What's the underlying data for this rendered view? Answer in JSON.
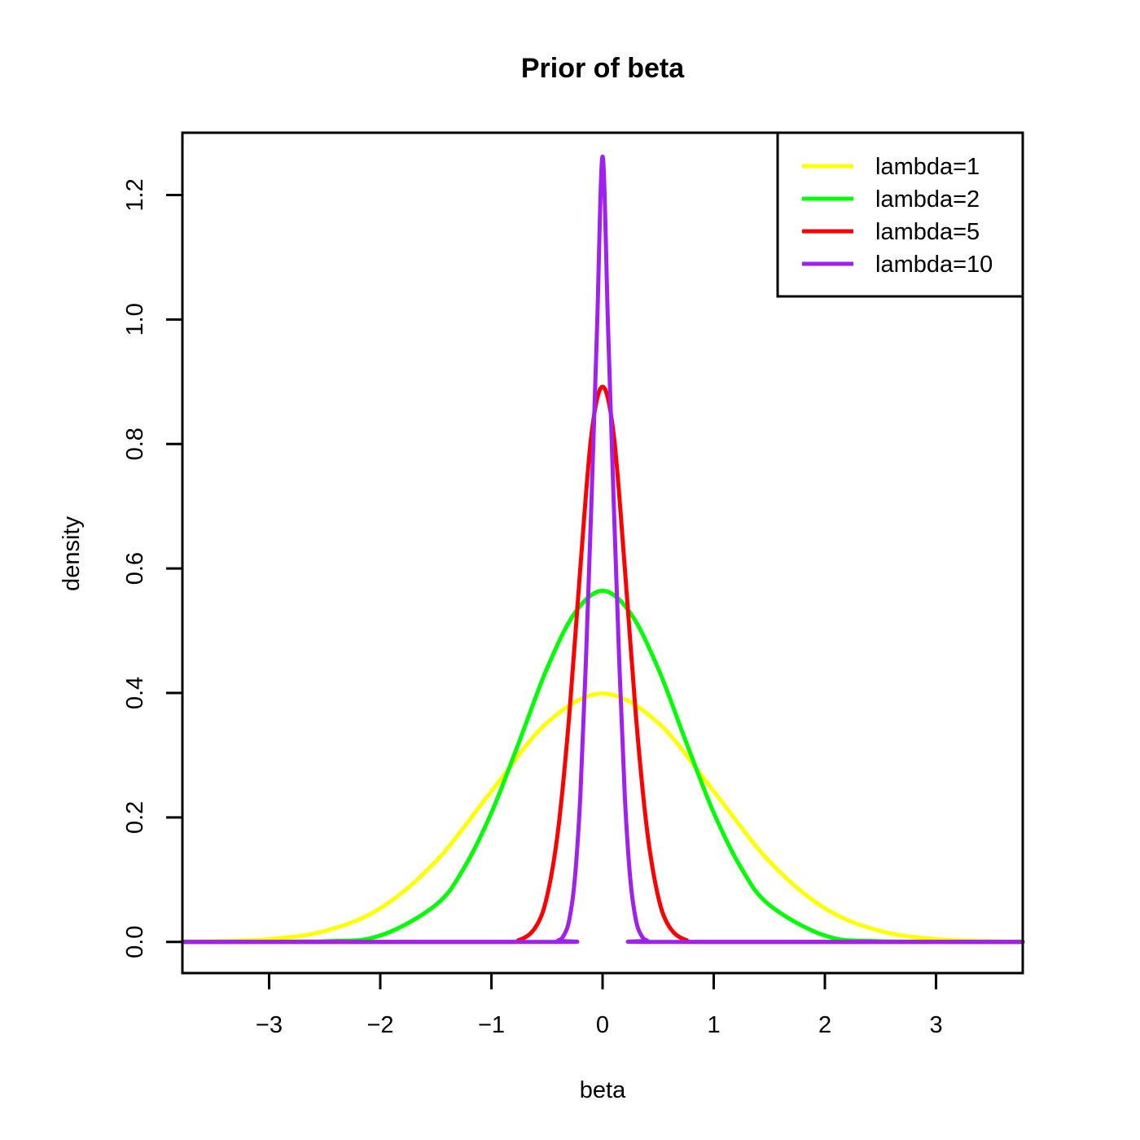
{
  "chart_data": {
    "type": "line",
    "title": "Prior of beta",
    "xlabel": "beta",
    "ylabel": "density",
    "xlim": [
      -3.78,
      3.78
    ],
    "ylim": [
      -0.05,
      1.3
    ],
    "x_ticks": [
      -3,
      -2,
      -1,
      0,
      1,
      2,
      3
    ],
    "x_tick_labels": [
      "−3",
      "−2",
      "−1",
      "0",
      "1",
      "2",
      "3"
    ],
    "y_ticks": [
      0.0,
      0.2,
      0.4,
      0.6,
      0.8,
      1.0,
      1.2
    ],
    "y_tick_labels": [
      "0.0",
      "0.2",
      "0.4",
      "0.6",
      "0.8",
      "1.0",
      "1.2"
    ],
    "grid": false,
    "legend_position": "top-right",
    "series": [
      {
        "name": "lambda=1",
        "color": "#ffff00",
        "x": [
          -3.78,
          -3.5,
          -3.0,
          -2.5,
          -2.0,
          -1.5,
          -1.0,
          -0.5,
          0.0,
          0.5,
          1.0,
          1.5,
          2.0,
          2.5,
          3.0,
          3.5,
          3.78
        ],
        "y": [
          0.0003,
          0.0009,
          0.0044,
          0.0175,
          0.054,
          0.1295,
          0.242,
          0.3521,
          0.399,
          0.3521,
          0.242,
          0.1295,
          0.054,
          0.0175,
          0.0044,
          0.0009,
          0.0003
        ]
      },
      {
        "name": "lambda=2",
        "color": "#00ff00",
        "x": [
          -3.78,
          -2.5,
          -2.0,
          -1.5,
          -1.25,
          -1.0,
          -0.75,
          -0.5,
          -0.25,
          0.0,
          0.25,
          0.5,
          0.75,
          1.0,
          1.25,
          1.5,
          2.0,
          2.5,
          3.78
        ],
        "y": [
          0.0,
          0.0011,
          0.0103,
          0.0595,
          0.1179,
          0.2076,
          0.3218,
          0.4394,
          0.5285,
          0.5642,
          0.5285,
          0.4394,
          0.3218,
          0.2076,
          0.1179,
          0.0595,
          0.0103,
          0.0011,
          0.0
        ]
      },
      {
        "name": "lambda=5",
        "color": "#ff0000",
        "x": [
          -3.78,
          -1.0,
          -0.75,
          -0.6,
          -0.5,
          -0.4,
          -0.3,
          -0.2,
          -0.1,
          0.0,
          0.1,
          0.2,
          0.3,
          0.4,
          0.5,
          0.6,
          0.75,
          1.0,
          3.78
        ],
        "y": [
          0.0,
          0.0,
          0.0032,
          0.0245,
          0.0731,
          0.1799,
          0.3631,
          0.6011,
          0.8154,
          0.8921,
          0.8154,
          0.6011,
          0.3631,
          0.1799,
          0.0731,
          0.0245,
          0.0032,
          0.0,
          0.0
        ]
      },
      {
        "name": "lambda=10",
        "color": "#a020f0",
        "x": [
          -3.78,
          -0.5,
          -0.4,
          -0.35,
          -0.3,
          -0.25,
          -0.2,
          -0.15,
          -0.1,
          -0.05,
          0.0,
          0.05,
          0.1,
          0.15,
          0.2,
          0.25,
          0.3,
          0.35,
          0.4,
          0.5,
          3.78
        ],
        "y": [
          0.0,
          0.0,
          0.0024,
          0.0101,
          0.0352,
          0.1002,
          0.2346,
          0.4503,
          0.7077,
          0.9835,
          1.2616,
          0.9835,
          0.7077,
          0.4503,
          0.2346,
          0.1002,
          0.0352,
          0.0101,
          0.0024,
          0.0,
          0.0
        ]
      }
    ]
  }
}
